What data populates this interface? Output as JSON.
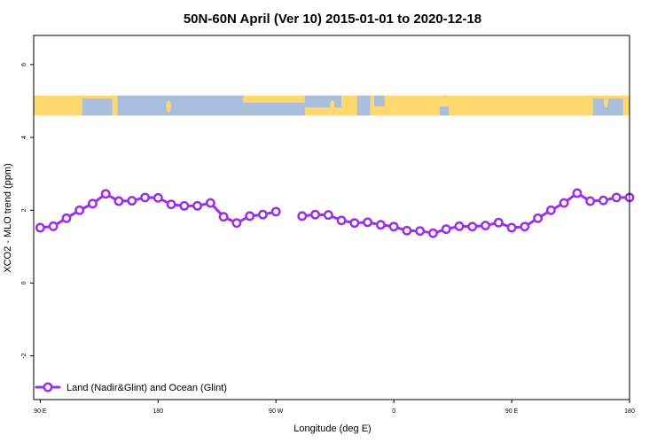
{
  "chart_data": {
    "type": "line",
    "title": "50N-60N April (Ver 10)   2015-01-01 to 2020-12-18",
    "xlabel": "Longitude (deg E)",
    "ylabel": "XCO2 - MLO trend (ppm)",
    "x_ticks": [
      {
        "value": 90,
        "label": "90 E"
      },
      {
        "value": 180,
        "label": "180"
      },
      {
        "value": 270,
        "label": "90 W"
      },
      {
        "value": 360,
        "label": "0"
      },
      {
        "value": 450,
        "label": "90 E"
      },
      {
        "value": 540,
        "label": "180"
      }
    ],
    "y_ticks": [
      -2,
      0,
      2,
      4,
      6
    ],
    "xlim": [
      85,
      540
    ],
    "ylim": [
      -3.2,
      6.8
    ],
    "grid": false,
    "legend_position": "bottom-left",
    "colors": {
      "series": "#9b30e6",
      "land": "#ffd86e",
      "ocean": "#a9bedd"
    },
    "map_strip": {
      "y_range": [
        4.6,
        5.15
      ]
    },
    "series": [
      {
        "name": "Land (Nadir&Glint) and Ocean (Glint)",
        "x": [
          90,
          100,
          110,
          120,
          130,
          140,
          150,
          160,
          170,
          180,
          190,
          200,
          210,
          220,
          230,
          240,
          250,
          260,
          270,
          290,
          300,
          310,
          320,
          330,
          340,
          350,
          360,
          370,
          380,
          390,
          400,
          410,
          420,
          430,
          440,
          450,
          460,
          470,
          480,
          490,
          500,
          510,
          520,
          530,
          540
        ],
        "y": [
          1.52,
          1.56,
          1.78,
          2.0,
          2.18,
          2.45,
          2.25,
          2.26,
          2.35,
          2.34,
          2.16,
          2.12,
          2.12,
          2.2,
          1.82,
          1.65,
          1.84,
          1.88,
          1.96,
          1.84,
          1.88,
          1.87,
          1.72,
          1.65,
          1.67,
          1.6,
          1.55,
          1.44,
          1.43,
          1.37,
          1.48,
          1.56,
          1.55,
          1.58,
          1.66,
          1.52,
          1.55,
          1.78,
          2.0,
          2.2,
          2.47,
          2.25,
          2.27,
          2.35,
          2.35
        ]
      }
    ]
  }
}
